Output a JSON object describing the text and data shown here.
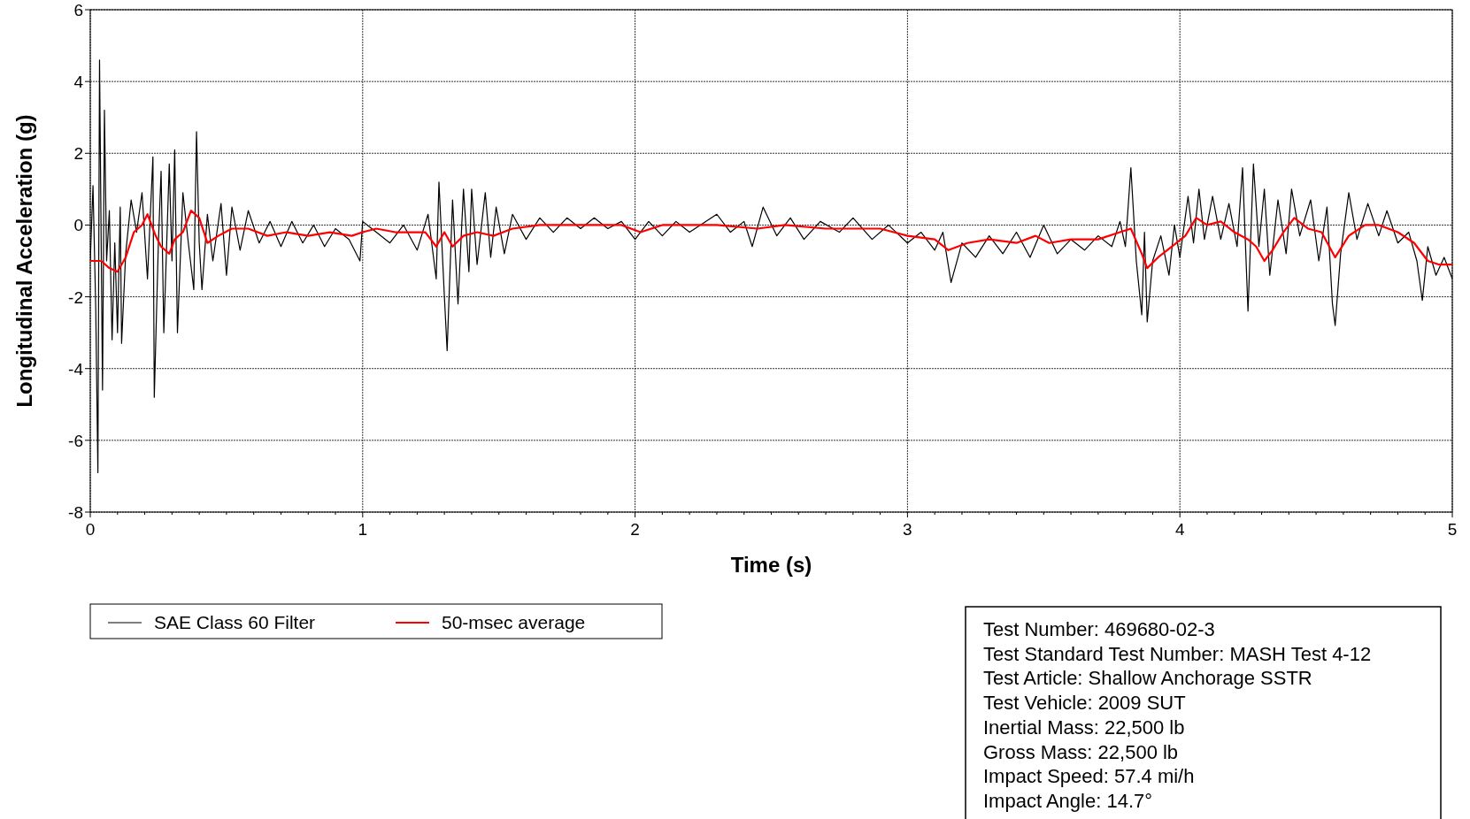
{
  "chart_data": {
    "type": "line",
    "xlabel": "Time (s)",
    "ylabel": "Longitudinal Acceleration (g)",
    "xlim": [
      0,
      5
    ],
    "ylim": [
      -8,
      6
    ],
    "xticks": [
      0,
      {
        "value": 0.1,
        "label": null
      },
      {
        "value": 0.2,
        "label": null
      },
      {
        "value": 0.3,
        "label": null
      },
      {
        "value": 0.4,
        "label": null
      },
      {
        "value": 0.5,
        "label": null
      },
      {
        "value": 0.6,
        "label": null
      },
      {
        "value": 0.7,
        "label": null
      },
      {
        "value": 0.8,
        "label": null
      },
      {
        "value": 0.9,
        "label": null
      },
      1,
      {
        "value": 1.1,
        "label": null
      },
      {
        "value": 1.2,
        "label": null
      },
      {
        "value": 1.3,
        "label": null
      },
      {
        "value": 1.4,
        "label": null
      },
      {
        "value": 1.5,
        "label": null
      },
      {
        "value": 1.6,
        "label": null
      },
      {
        "value": 1.7,
        "label": null
      },
      {
        "value": 1.8,
        "label": null
      },
      {
        "value": 1.9,
        "label": null
      },
      2,
      {
        "value": 2.1,
        "label": null
      },
      {
        "value": 2.2,
        "label": null
      },
      {
        "value": 2.3,
        "label": null
      },
      {
        "value": 2.4,
        "label": null
      },
      {
        "value": 2.5,
        "label": null
      },
      {
        "value": 2.6,
        "label": null
      },
      {
        "value": 2.7,
        "label": null
      },
      {
        "value": 2.8,
        "label": null
      },
      {
        "value": 2.9,
        "label": null
      },
      3,
      {
        "value": 3.1,
        "label": null
      },
      {
        "value": 3.2,
        "label": null
      },
      {
        "value": 3.3,
        "label": null
      },
      {
        "value": 3.4,
        "label": null
      },
      {
        "value": 3.5,
        "label": null
      },
      {
        "value": 3.6,
        "label": null
      },
      {
        "value": 3.7,
        "label": null
      },
      {
        "value": 3.8,
        "label": null
      },
      {
        "value": 3.9,
        "label": null
      },
      4,
      {
        "value": 4.1,
        "label": null
      },
      {
        "value": 4.2,
        "label": null
      },
      {
        "value": 4.3,
        "label": null
      },
      {
        "value": 4.4,
        "label": null
      },
      {
        "value": 4.5,
        "label": null
      },
      {
        "value": 4.6,
        "label": null
      },
      {
        "value": 4.7,
        "label": null
      },
      {
        "value": 4.8,
        "label": null
      },
      {
        "value": 4.9,
        "label": null
      },
      5
    ],
    "yticks": [
      -8,
      -6,
      -4,
      -2,
      0,
      2,
      4,
      6
    ],
    "grid": true,
    "legend": "bottom left",
    "line_style": "solid",
    "marker": "none",
    "series": [
      {
        "name": "SAE Class 60 Filter",
        "color": "#000000",
        "x": [
          0,
          0.01,
          0.02,
          0.028,
          0.034,
          0.045,
          0.052,
          0.06,
          0.07,
          0.08,
          0.09,
          0.1,
          0.11,
          0.115,
          0.13,
          0.15,
          0.17,
          0.19,
          0.21,
          0.23,
          0.235,
          0.25,
          0.26,
          0.27,
          0.29,
          0.3,
          0.31,
          0.32,
          0.34,
          0.36,
          0.38,
          0.39,
          0.4,
          0.41,
          0.43,
          0.45,
          0.48,
          0.5,
          0.52,
          0.55,
          0.58,
          0.62,
          0.66,
          0.7,
          0.74,
          0.78,
          0.82,
          0.86,
          0.9,
          0.95,
          0.99,
          1,
          1.05,
          1.1,
          1.15,
          1.2,
          1.24,
          1.27,
          1.28,
          1.3,
          1.31,
          1.33,
          1.35,
          1.37,
          1.39,
          1.4,
          1.42,
          1.45,
          1.47,
          1.49,
          1.52,
          1.55,
          1.6,
          1.65,
          1.7,
          1.75,
          1.8,
          1.85,
          1.9,
          1.95,
          2,
          2.05,
          2.1,
          2.15,
          2.2,
          2.3,
          2.35,
          2.4,
          2.43,
          2.47,
          2.52,
          2.57,
          2.62,
          2.68,
          2.75,
          2.8,
          2.87,
          2.93,
          3,
          3.05,
          3.1,
          3.13,
          3.16,
          3.2,
          3.25,
          3.3,
          3.35,
          3.4,
          3.45,
          3.5,
          3.55,
          3.6,
          3.65,
          3.7,
          3.75,
          3.78,
          3.8,
          3.82,
          3.84,
          3.86,
          3.87,
          3.88,
          3.9,
          3.93,
          3.96,
          3.98,
          4,
          4.03,
          4.05,
          4.07,
          4.09,
          4.12,
          4.15,
          4.18,
          4.21,
          4.23,
          4.25,
          4.27,
          4.29,
          4.31,
          4.33,
          4.36,
          4.39,
          4.41,
          4.44,
          4.48,
          4.51,
          4.54,
          4.56,
          4.57,
          4.59,
          4.62,
          4.65,
          4.69,
          4.73,
          4.76,
          4.8,
          4.84,
          4.87,
          4.89,
          4.91,
          4.94,
          4.97,
          5
        ],
        "values": [
          -1,
          1.1,
          -2.3,
          -6.9,
          4.6,
          -4.6,
          3.2,
          -1,
          0.4,
          -3.2,
          -0.5,
          -3,
          0.5,
          -3.3,
          -0.8,
          0.7,
          -0.2,
          0.9,
          -1.5,
          1.9,
          -4.8,
          -0.5,
          1.5,
          -3,
          1.7,
          -1,
          2.1,
          -3,
          0.9,
          -0.5,
          -1.8,
          2.6,
          -0.5,
          -1.8,
          0.3,
          -1,
          0.6,
          -1.4,
          0.5,
          -0.7,
          0.4,
          -0.5,
          0.1,
          -0.6,
          0.1,
          -0.5,
          0,
          -0.6,
          -0.1,
          -0.4,
          -1,
          0.1,
          -0.2,
          -0.5,
          0,
          -0.7,
          0.3,
          -1.5,
          1.2,
          -2,
          -3.5,
          0.7,
          -2.2,
          1,
          -1.3,
          1,
          -1.1,
          0.9,
          -0.9,
          0.5,
          -0.8,
          0.3,
          -0.4,
          0.2,
          -0.2,
          0.2,
          -0.1,
          0.2,
          -0.1,
          0.1,
          -0.4,
          0.1,
          -0.3,
          0.1,
          -0.2,
          0.3,
          -0.2,
          0.1,
          -0.6,
          0.5,
          -0.3,
          0.2,
          -0.4,
          0.1,
          -0.2,
          0.2,
          -0.4,
          0,
          -0.5,
          -0.2,
          -0.7,
          -0.2,
          -1.6,
          -0.5,
          -0.9,
          -0.3,
          -0.8,
          -0.2,
          -0.9,
          0,
          -0.8,
          -0.4,
          -0.7,
          -0.3,
          -0.6,
          0.1,
          -0.6,
          1.6,
          -1,
          -2.5,
          -0.2,
          -2.7,
          -1,
          -0.3,
          -1.4,
          0,
          -0.9,
          0.8,
          -0.5,
          1,
          -0.4,
          0.8,
          -0.4,
          0.6,
          -0.6,
          1.6,
          -2.4,
          1.7,
          -0.6,
          1,
          -1.4,
          0.7,
          -0.8,
          1,
          -0.3,
          0.7,
          -1,
          0.5,
          -2.2,
          -2.8,
          -0.8,
          0.9,
          -0.4,
          0.6,
          -0.3,
          0.4,
          -0.5,
          -0.2,
          -1,
          -2.1,
          -0.6,
          -1.4,
          -0.9,
          -1.5
        ]
      },
      {
        "name": "50-msec average",
        "color": "#ff0000",
        "x": [
          0,
          0.04,
          0.07,
          0.1,
          0.13,
          0.16,
          0.19,
          0.21,
          0.24,
          0.26,
          0.29,
          0.31,
          0.34,
          0.37,
          0.4,
          0.43,
          0.47,
          0.52,
          0.58,
          0.65,
          0.72,
          0.8,
          0.88,
          0.96,
          1,
          1.05,
          1.12,
          1.18,
          1.23,
          1.27,
          1.3,
          1.33,
          1.37,
          1.42,
          1.48,
          1.55,
          1.65,
          1.8,
          1.95,
          2.02,
          2.1,
          2.3,
          2.45,
          2.55,
          2.7,
          2.9,
          3,
          3.1,
          3.15,
          3.22,
          3.3,
          3.4,
          3.47,
          3.52,
          3.6,
          3.7,
          3.78,
          3.82,
          3.86,
          3.88,
          3.92,
          3.97,
          4.02,
          4.06,
          4.1,
          4.15,
          4.2,
          4.25,
          4.28,
          4.31,
          4.34,
          4.38,
          4.42,
          4.47,
          4.52,
          4.57,
          4.62,
          4.68,
          4.73,
          4.8,
          4.86,
          4.91,
          4.95,
          5
        ],
        "values": [
          -1,
          -1,
          -1.2,
          -1.3,
          -0.9,
          -0.2,
          0,
          0.3,
          -0.3,
          -0.6,
          -0.8,
          -0.4,
          -0.2,
          0.4,
          0.2,
          -0.5,
          -0.3,
          -0.1,
          -0.1,
          -0.3,
          -0.2,
          -0.3,
          -0.2,
          -0.3,
          -0.2,
          -0.1,
          -0.2,
          -0.2,
          -0.2,
          -0.6,
          -0.2,
          -0.6,
          -0.3,
          -0.2,
          -0.3,
          -0.1,
          0,
          0,
          0,
          -0.2,
          0,
          0,
          -0.1,
          0,
          -0.1,
          -0.1,
          -0.3,
          -0.4,
          -0.7,
          -0.5,
          -0.4,
          -0.5,
          -0.3,
          -0.5,
          -0.4,
          -0.4,
          -0.2,
          -0.1,
          -0.8,
          -1.2,
          -0.9,
          -0.6,
          -0.3,
          0.2,
          0,
          0.1,
          -0.2,
          -0.4,
          -0.6,
          -1,
          -0.7,
          -0.2,
          0.2,
          -0.1,
          -0.2,
          -0.9,
          -0.3,
          0,
          0,
          -0.2,
          -0.5,
          -1,
          -1.1,
          -1.1
        ]
      }
    ],
    "annotations": [
      "Test Number: 469680-02-3",
      "Test Standard Test Number: MASH Test 4-12",
      "Test Article: Shallow Anchorage SSTR",
      "Test Vehicle: 2009 SUT",
      "Inertial Mass: 22,500 lb",
      "Gross Mass: 22,500 lb",
      "Impact Speed: 57.4 mi/h",
      "Impact Angle: 14.7°"
    ]
  }
}
